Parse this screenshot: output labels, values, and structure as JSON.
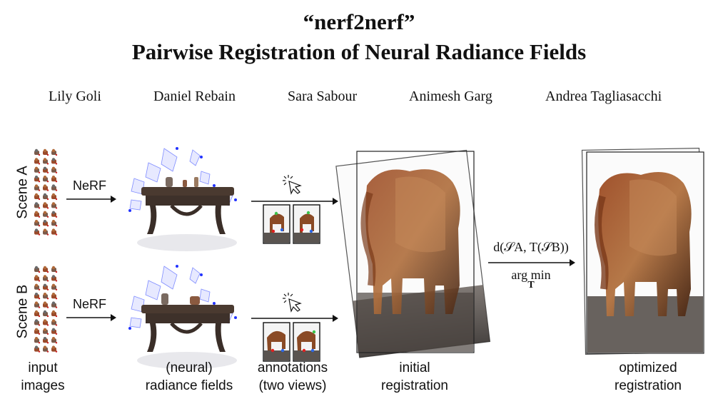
{
  "title": {
    "line1": "“nerf2nerf”",
    "line2": "Pairwise Registration of Neural Radiance Fields"
  },
  "authors": [
    "Lily Goli",
    "Daniel Rebain",
    "Sara Sabour",
    "Animesh Garg",
    "Andrea Tagliasacchi"
  ],
  "scenes": {
    "a_label": "Scene A",
    "b_label": "Scene B"
  },
  "arrows": {
    "nerf_a": "NeRF",
    "nerf_b": "NeRF"
  },
  "formula": {
    "objective": "d(𝒮A, T(𝒮B))",
    "op": "arg min",
    "var": "T"
  },
  "captions": {
    "input_1": "input",
    "input_2": "images",
    "radiance_1": "(neural)",
    "radiance_2": "radiance fields",
    "annot_1": "annotations",
    "annot_2": "(two views)",
    "initial_1": "initial",
    "initial_2": "registration",
    "optimized_1": "optimized",
    "optimized_2": "registration"
  },
  "colors": {
    "table_wood": "#4a3a30",
    "elephant_brown": "#8a4a25",
    "camera_blue": "#7f8cff",
    "keypoint_green": "#3cc24a",
    "keypoint_red": "#e02020",
    "keypoint_blue": "#2a66e8"
  },
  "icons": [
    "cursor-click-icon"
  ]
}
